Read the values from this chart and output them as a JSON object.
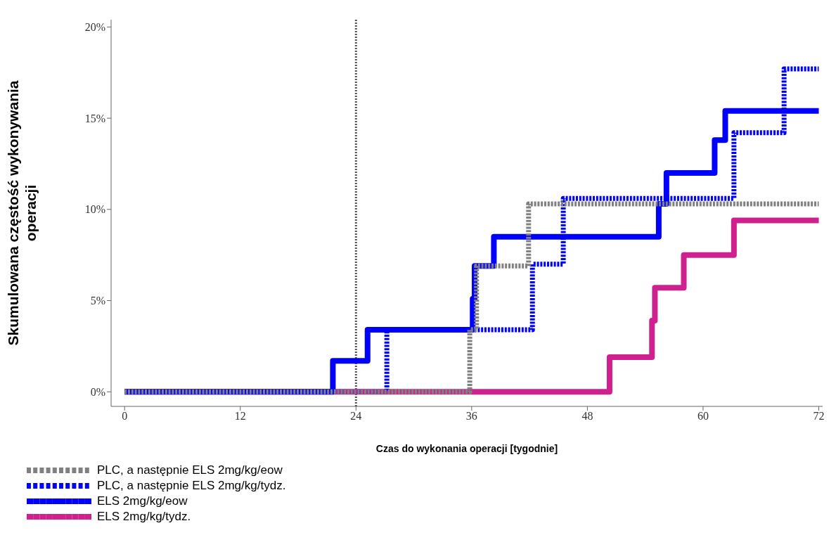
{
  "chart_data": {
    "type": "step",
    "xlabel": "Czas do wykonania operacji [tygodnie]",
    "ylabel": "Skumulowana częstość wykonywania operacji",
    "xlim": [
      -1.4,
      72.4
    ],
    "xticks": [
      0,
      12,
      24,
      36,
      48,
      60,
      72
    ],
    "ylim": [
      -0.8,
      20.4
    ],
    "yticks": [
      {
        "value": 0,
        "label": "0%"
      },
      {
        "value": 5,
        "label": "5%"
      },
      {
        "value": 10,
        "label": "10%"
      },
      {
        "value": 15,
        "label": "15%"
      },
      {
        "value": 20,
        "label": "20%"
      }
    ],
    "grid": false,
    "legend": "bottom left",
    "marker": "none",
    "ref_lines": [
      {
        "axis": "x",
        "value": 24,
        "color": "#555555",
        "line_style": "dotted"
      }
    ],
    "series": [
      {
        "name": "PLC, a następnie ELS 2mg/kg/eow",
        "color": "#808080",
        "line_style": "dashed",
        "x": [
          0,
          35.8,
          36.5,
          41.9,
          72
        ],
        "values": [
          0,
          3.4,
          6.9,
          10.3,
          10.3
        ]
      },
      {
        "name": "PLC, a następnie ELS 2mg/kg/tydz.",
        "color": "#0000ff",
        "line_style": "dashed",
        "x": [
          0,
          27.2,
          42.3,
          45.5,
          63.2,
          68.4,
          72
        ],
        "values": [
          0,
          3.4,
          7.0,
          10.6,
          14.2,
          17.7,
          17.7
        ]
      },
      {
        "name": "ELS 2mg/kg/eow",
        "color": "#0000ff",
        "line_style": "solid",
        "x": [
          0,
          21.6,
          25.2,
          36.1,
          36.3,
          38.3,
          55.4,
          56.2,
          61.2,
          62.3,
          72
        ],
        "values": [
          0,
          1.7,
          3.4,
          5.1,
          6.9,
          8.5,
          10.3,
          12.0,
          13.8,
          15.4,
          15.4
        ]
      },
      {
        "name": "ELS 2mg/kg/tydz.",
        "color": "#d0208f",
        "line_style": "solid",
        "x": [
          0,
          50.3,
          54.7,
          55.0,
          58.0,
          63.2,
          72
        ],
        "values": [
          0,
          1.9,
          3.9,
          5.7,
          7.5,
          9.4,
          9.4
        ]
      }
    ]
  }
}
